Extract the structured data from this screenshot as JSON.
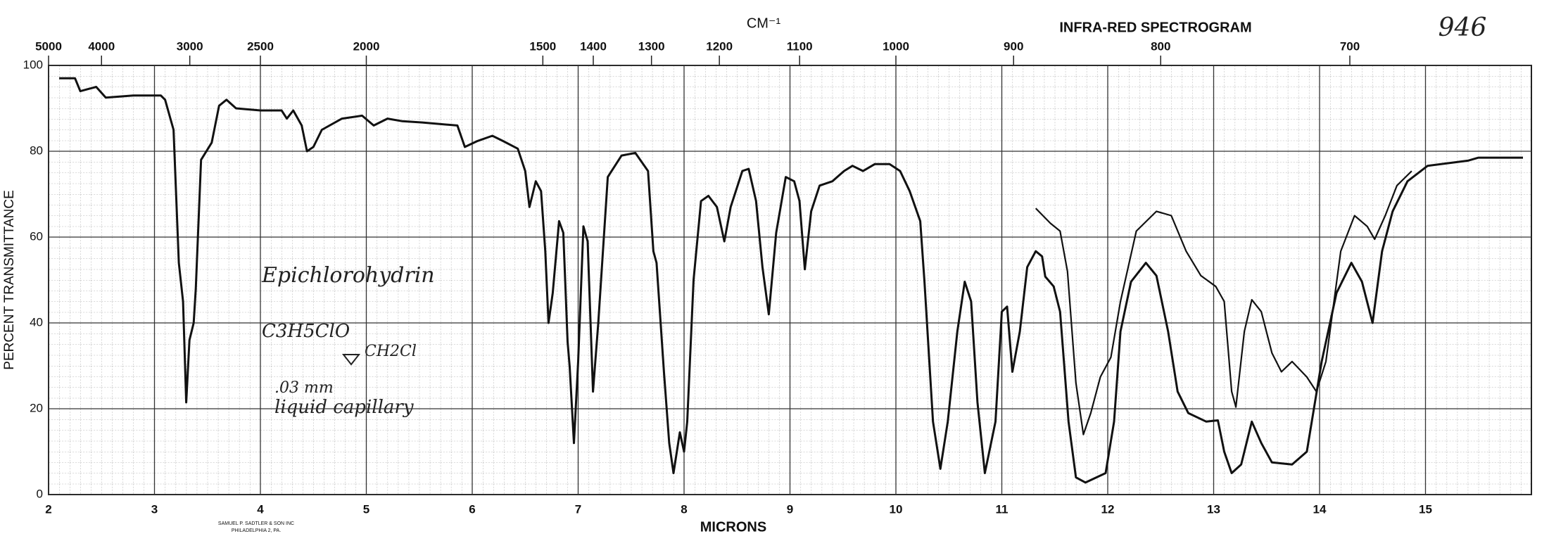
{
  "chart_data": {
    "type": "line",
    "title": "INFRA-RED SPECTROGRAM",
    "annotation": "946",
    "x2_label": "CM⁻¹",
    "xlabel": "MICRONS",
    "ylabel": "PERCENT TRANSMITTANCE",
    "publisher": [
      "SAMUEL P. SADTLER & SON INC",
      "PHILADELPHIA 2, PA."
    ],
    "notes": [
      "Epichlorohydrin",
      "C3H5ClO",
      "CH2Cl",
      ".03 mm",
      "liquid capillary"
    ],
    "xlim": [
      2,
      16
    ],
    "ylim": [
      0,
      100
    ],
    "xticks": [
      2,
      3,
      4,
      5,
      6,
      7,
      8,
      9,
      10,
      11,
      12,
      13,
      14,
      15
    ],
    "yticks": [
      0,
      20,
      40,
      60,
      80,
      100
    ],
    "x2ticks": [
      5000,
      4000,
      3000,
      2500,
      2000,
      1500,
      1400,
      1300,
      1200,
      1100,
      1000,
      900,
      800,
      700
    ],
    "grid": true,
    "series": [
      {
        "color": "#111111",
        "x": [
          2.1,
          2.25,
          2.3,
          2.45,
          2.54,
          2.8,
          3.06,
          3.1,
          3.18,
          3.23,
          3.27,
          3.3,
          3.33,
          3.37,
          3.39,
          3.44,
          3.54,
          3.61,
          3.68,
          3.77,
          4.0,
          4.2,
          4.25,
          4.31,
          4.39,
          4.44,
          4.5,
          4.58,
          4.77,
          4.96,
          5.07,
          5.2,
          5.34,
          5.53,
          5.86,
          5.93,
          6.05,
          6.19,
          6.29,
          6.43,
          6.5,
          6.54,
          6.6,
          6.65,
          6.69,
          6.72,
          6.76,
          6.82,
          6.86,
          6.9,
          6.92,
          6.96,
          7.0,
          7.05,
          7.09,
          7.14,
          7.19,
          7.28,
          7.41,
          7.54,
          7.66,
          7.71,
          7.74,
          7.81,
          7.86,
          7.9,
          7.96,
          8.0,
          8.03,
          8.09,
          8.16,
          8.23,
          8.31,
          8.38,
          8.44,
          8.55,
          8.61,
          8.68,
          8.74,
          8.8,
          8.87,
          8.96,
          9.04,
          9.09,
          9.14,
          9.2,
          9.28,
          9.4,
          9.51,
          9.59,
          9.69,
          9.8,
          9.94,
          10.04,
          10.13,
          10.23,
          10.27,
          10.35,
          10.42,
          10.49,
          10.58,
          10.65,
          10.71,
          10.77,
          10.84,
          10.94,
          11.0,
          11.05,
          11.1,
          11.17,
          11.24,
          11.32,
          11.38,
          11.41,
          11.49,
          11.55,
          11.63,
          11.7,
          11.79,
          11.98,
          12.06,
          12.12,
          12.22,
          12.36,
          12.46,
          12.57,
          12.66,
          12.76,
          12.93,
          13.04,
          13.1,
          13.17,
          13.26,
          13.36,
          13.45,
          13.55,
          13.74,
          13.88,
          14.02,
          14.16,
          14.3,
          14.4,
          14.5,
          14.59,
          14.69,
          14.83,
          15.02,
          15.4,
          15.5,
          15.92
        ],
        "values": [
          97,
          97,
          94,
          95,
          92.5,
          93,
          93,
          92,
          85,
          54,
          45,
          21.5,
          36,
          40,
          48,
          78,
          82,
          90.6,
          92,
          90,
          89.5,
          89.5,
          87.6,
          89.5,
          86,
          80,
          81,
          85,
          87.6,
          88.3,
          86,
          87.6,
          87,
          86.7,
          86,
          81,
          82.4,
          83.6,
          82.4,
          80.6,
          75.4,
          67,
          73,
          70.7,
          56.7,
          40,
          47,
          63.7,
          61,
          35.6,
          29.7,
          12,
          31,
          62.5,
          59,
          24,
          40,
          74,
          79,
          79.6,
          75.4,
          56.7,
          54,
          28.6,
          12,
          5,
          14.5,
          10,
          17,
          50,
          68.4,
          69.6,
          67,
          59,
          67,
          75.4,
          75.9,
          68.4,
          53,
          42,
          61,
          74,
          73,
          68.4,
          52.5,
          66,
          72,
          73,
          75.4,
          76.6,
          75.4,
          77,
          77,
          75.4,
          70.7,
          63.7,
          49.6,
          17,
          6,
          17,
          38,
          49.6,
          45,
          21.5,
          5,
          17,
          42.6,
          43.8,
          28.6,
          38,
          53,
          56.7,
          55.5,
          50.8,
          48.5,
          42.6,
          17,
          4,
          2.8,
          5,
          17,
          38,
          49.6,
          54,
          51,
          38,
          24,
          19,
          17,
          17.3,
          10,
          5,
          7,
          17,
          12,
          7.5,
          7,
          10,
          31,
          47,
          54,
          49.6,
          40,
          56.7,
          66,
          73,
          76.6,
          77.8,
          78.5,
          78.5
        ]
      },
      {
        "color": "#111111",
        "x": [
          11.32,
          11.46,
          11.55,
          11.62,
          11.7,
          11.77,
          11.84,
          11.93,
          12.03,
          12.12,
          12.27,
          12.46,
          12.6,
          12.74,
          12.88,
          13.02,
          13.1,
          13.17,
          13.21,
          13.29,
          13.36,
          13.45,
          13.55,
          13.64,
          13.74,
          13.88,
          13.97,
          14.06,
          14.2,
          14.33,
          14.45,
          14.52,
          14.62,
          14.73,
          14.87
        ],
        "values": [
          66.7,
          63.2,
          61.4,
          52,
          26,
          14,
          19,
          27.4,
          32,
          45,
          61.4,
          66,
          65,
          56.7,
          51,
          48.5,
          45,
          24,
          20.4,
          38,
          45.4,
          42.6,
          33,
          28.6,
          31,
          27.4,
          24,
          31,
          56.7,
          65,
          62.5,
          59.5,
          65,
          72,
          75.4
        ]
      }
    ]
  }
}
